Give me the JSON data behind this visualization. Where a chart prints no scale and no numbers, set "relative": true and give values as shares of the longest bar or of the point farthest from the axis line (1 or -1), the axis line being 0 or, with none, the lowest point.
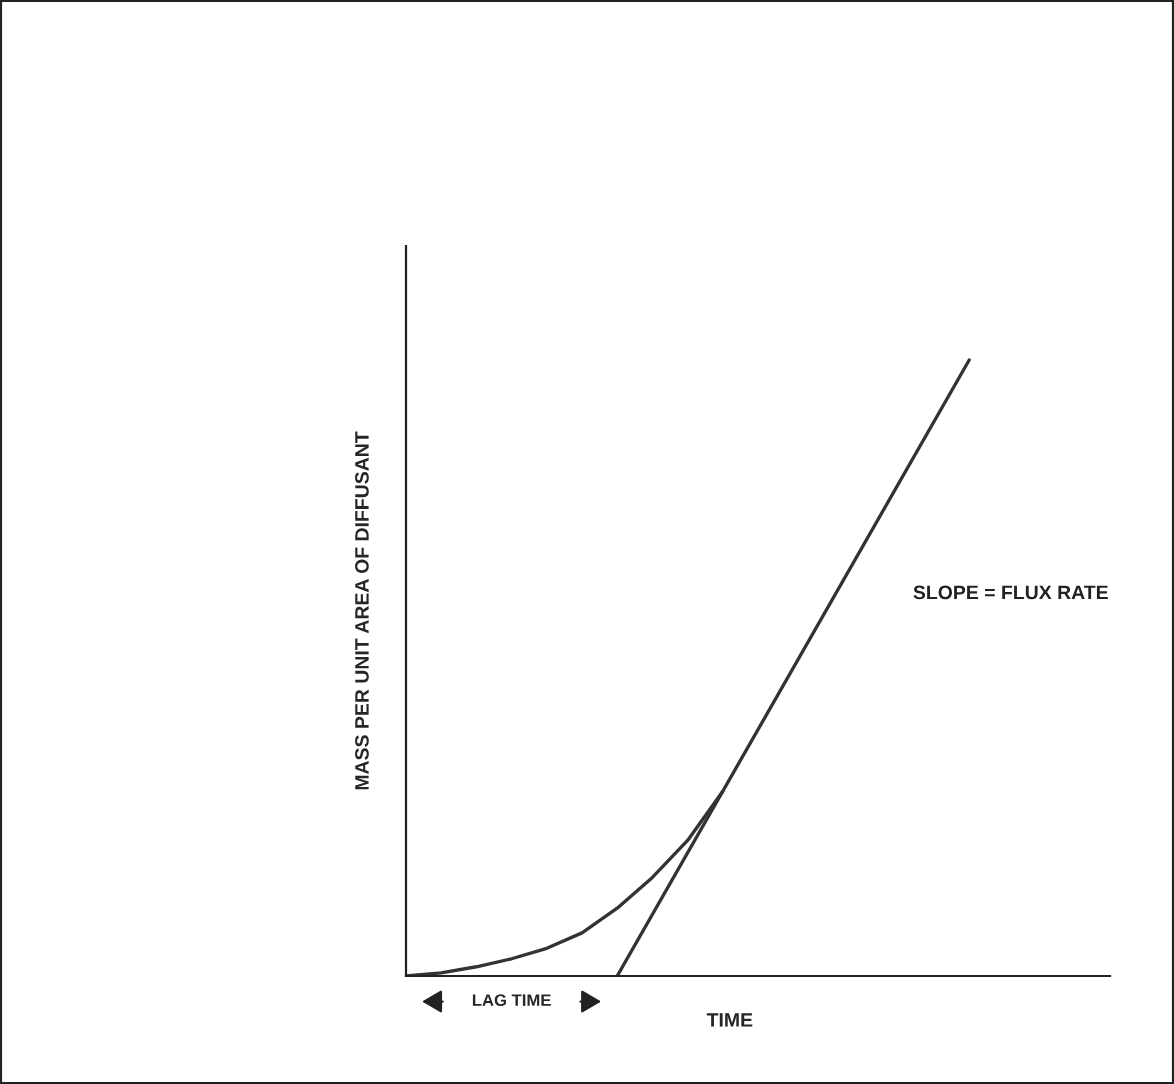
{
  "chart_data": {
    "type": "line",
    "relative": true,
    "xlabel": "TIME",
    "ylabel": "MASS PER UNIT AREA OF DIFFUSANT",
    "marker": "none",
    "line_style": "solid",
    "annotations": [
      "LAG TIME"
    ],
    "categories": [
      null,
      null,
      null,
      null,
      null,
      null,
      null,
      null,
      null,
      null,
      null,
      null,
      null,
      null,
      null,
      null,
      null,
      null,
      null,
      null,
      null
    ],
    "series": [
      {
        "color": "#333333",
        "values": [
          0,
          0.005,
          0.015,
          0.028,
          0.045,
          0.07,
          0.11,
          0.16,
          0.22,
          0.3,
          null,
          null,
          null,
          null,
          null,
          null,
          null,
          null,
          null,
          null,
          null
        ]
      },
      {
        "name": "SLOPE = FLUX RATE",
        "color": "#333333",
        "values": [
          null,
          null,
          null,
          null,
          null,
          null,
          0,
          null,
          null,
          null,
          null,
          null,
          null,
          null,
          null,
          null,
          1,
          null,
          null,
          null,
          null
        ]
      }
    ]
  }
}
